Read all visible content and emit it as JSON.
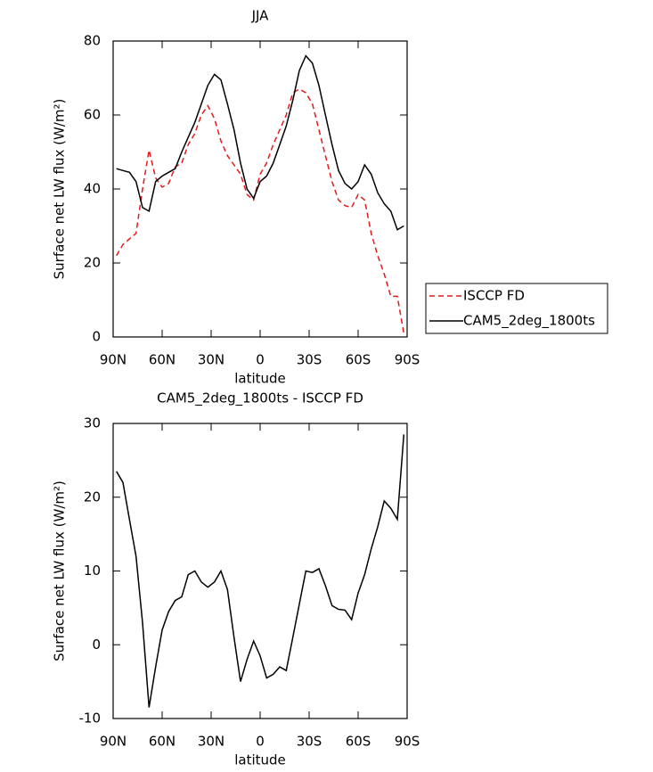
{
  "chart_data": [
    {
      "type": "line",
      "title": "JJA",
      "x_label": "latitude",
      "y_label": "Surface net LW flux (W/m²)",
      "x": [
        88,
        84,
        80,
        76,
        72,
        68,
        64,
        60,
        56,
        52,
        48,
        44,
        40,
        36,
        32,
        28,
        24,
        20,
        16,
        12,
        8,
        4,
        0,
        -4,
        -8,
        -12,
        -16,
        -20,
        -24,
        -28,
        -32,
        -36,
        -40,
        -44,
        -48,
        -52,
        -56,
        -60,
        -64,
        -68,
        -72,
        -76,
        -80,
        -84,
        -88
      ],
      "series": [
        {
          "name": "ISCCP FD",
          "color": "#e31a1c",
          "line_style": "dashed",
          "values": [
            22,
            25,
            26.5,
            28,
            40,
            50.5,
            43,
            40.5,
            41.5,
            46,
            47,
            52,
            55,
            60,
            62.5,
            59,
            53,
            49,
            46.5,
            44,
            38.5,
            37,
            44,
            47,
            52,
            56,
            60,
            66,
            67,
            66,
            63,
            56,
            49,
            42,
            37,
            35.5,
            35,
            38.5,
            37,
            28,
            22,
            17,
            11,
            11,
            1
          ]
        },
        {
          "name": "CAM5_2deg_1800ts",
          "color": "#000000",
          "line_style": "solid",
          "values": [
            45.5,
            45,
            44.5,
            42,
            35,
            34,
            42,
            43.5,
            44.5,
            45.5,
            50,
            54,
            58,
            63,
            68,
            71,
            69.5,
            63,
            56,
            47,
            40,
            37.5,
            42,
            43.5,
            47,
            52,
            57,
            64,
            72,
            76,
            74,
            68,
            60,
            52,
            45,
            41.5,
            40,
            42,
            46.5,
            44,
            39,
            36,
            34,
            29,
            30
          ]
        }
      ],
      "xlim": [
        90,
        -90
      ],
      "xticks": [
        {
          "value": 90,
          "label": "90N"
        },
        {
          "value": 60,
          "label": "60N"
        },
        {
          "value": 30,
          "label": "30N"
        },
        0,
        {
          "value": -30,
          "label": "30S"
        },
        {
          "value": -60,
          "label": "60S"
        },
        {
          "value": -90,
          "label": "90S"
        }
      ],
      "ylim": [
        0,
        80
      ],
      "yticks": [
        0,
        20,
        40,
        60,
        80
      ],
      "legend": "right"
    },
    {
      "type": "line",
      "title": "CAM5_2deg_1800ts - ISCCP FD",
      "x_label": "latitude",
      "y_label": "Surface net LW flux (W/m²)",
      "x": [
        88,
        84,
        80,
        76,
        72,
        68,
        64,
        60,
        56,
        52,
        48,
        44,
        40,
        36,
        32,
        28,
        24,
        20,
        16,
        12,
        8,
        4,
        0,
        -4,
        -8,
        -12,
        -16,
        -20,
        -24,
        -28,
        -32,
        -36,
        -40,
        -44,
        -48,
        -52,
        -56,
        -60,
        -64,
        -68,
        -72,
        -76,
        -80,
        -84,
        -88
      ],
      "series": [
        {
          "color": "#000000",
          "line_style": "solid",
          "values": [
            23.5,
            22,
            17,
            12,
            3,
            -8.5,
            -3,
            2,
            4.5,
            6,
            6.5,
            9.5,
            10,
            8.5,
            7.8,
            8.5,
            10,
            7.5,
            1,
            -5,
            -2,
            0.5,
            -1.5,
            -4.5,
            -4,
            -3,
            -3.5,
            1,
            5.5,
            10,
            9.8,
            10.3,
            8,
            5.3,
            4.8,
            4.7,
            3.4,
            7,
            9.5,
            13,
            16,
            19.5,
            18.5,
            17,
            28.5
          ]
        }
      ],
      "xlim": [
        90,
        -90
      ],
      "xticks": [
        {
          "value": 90,
          "label": "90N"
        },
        {
          "value": 60,
          "label": "60N"
        },
        {
          "value": 30,
          "label": "30N"
        },
        0,
        {
          "value": -30,
          "label": "30S"
        },
        {
          "value": -60,
          "label": "60S"
        },
        {
          "value": -90,
          "label": "90S"
        }
      ],
      "ylim": [
        -10,
        30
      ],
      "yticks": [
        -10,
        0,
        10,
        20,
        30
      ]
    }
  ]
}
